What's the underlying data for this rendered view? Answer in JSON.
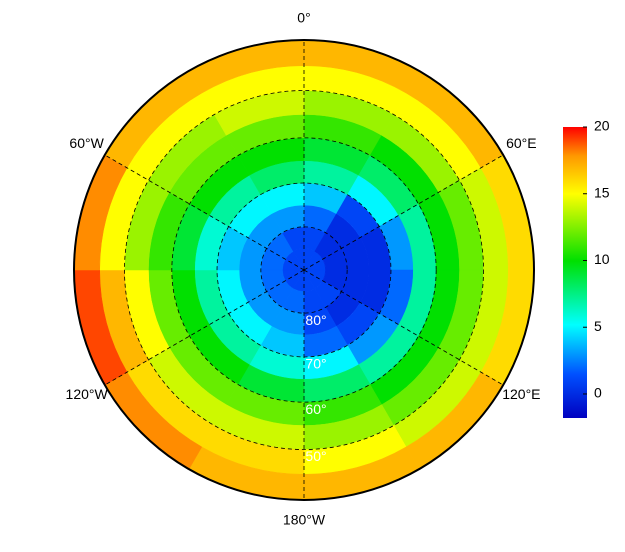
{
  "map": {
    "type": "polar-heatmap",
    "boundary_lat": -40,
    "meridians": [
      {
        "value": 0,
        "label": "0°"
      },
      {
        "value": 60,
        "label": "60°E"
      },
      {
        "value": 120,
        "label": "120°E"
      },
      {
        "value": 180,
        "label": "180°W"
      },
      {
        "value": -120,
        "label": "120°W"
      },
      {
        "value": -60,
        "label": "60°W"
      }
    ],
    "parallels": [
      {
        "value": -80,
        "label": "80°"
      },
      {
        "value": -70,
        "label": "70°"
      },
      {
        "value": -60,
        "label": "60°"
      },
      {
        "value": -50,
        "label": "50°"
      }
    ],
    "cells": {
      "lats": [
        -87.5,
        -82.5,
        -77.5,
        -72.5,
        -67.5,
        -62.5,
        -57.5,
        -52.5,
        -47.5,
        -42.5
      ],
      "lons": [
        0,
        30,
        60,
        90,
        120,
        150,
        180,
        210,
        240,
        270,
        300,
        330
      ],
      "values": [
        [
          1,
          1,
          1,
          1,
          1,
          1,
          1,
          1,
          1,
          1,
          1,
          1
        ],
        [
          1,
          0,
          0,
          0,
          1,
          1,
          2,
          2,
          2,
          2,
          2,
          1
        ],
        [
          2,
          0,
          0,
          0,
          0,
          1,
          3,
          3,
          3,
          3,
          3,
          3
        ],
        [
          4,
          1,
          0,
          0,
          1,
          2,
          4,
          5,
          5,
          4,
          5,
          5
        ],
        [
          7,
          5,
          3,
          2,
          3,
          5,
          6,
          7,
          7,
          6,
          7,
          8
        ],
        [
          9,
          8,
          7,
          7,
          7,
          8,
          9,
          10,
          10,
          9,
          10,
          10
        ],
        [
          11,
          10,
          10,
          10,
          10,
          11,
          12,
          12,
          12,
          11,
          12,
          12
        ],
        [
          13,
          13,
          12,
          12,
          12,
          13,
          14,
          14,
          15,
          13,
          13,
          14
        ],
        [
          15,
          15,
          14,
          14,
          14,
          15,
          16,
          16,
          17,
          15,
          15,
          15
        ],
        [
          17,
          17,
          16,
          16,
          17,
          17,
          17,
          18,
          19,
          18,
          17,
          17
        ]
      ]
    },
    "colorbar": {
      "lim": [
        -1.8,
        20
      ],
      "ticks": [
        0,
        5,
        10,
        15,
        20
      ]
    }
  }
}
